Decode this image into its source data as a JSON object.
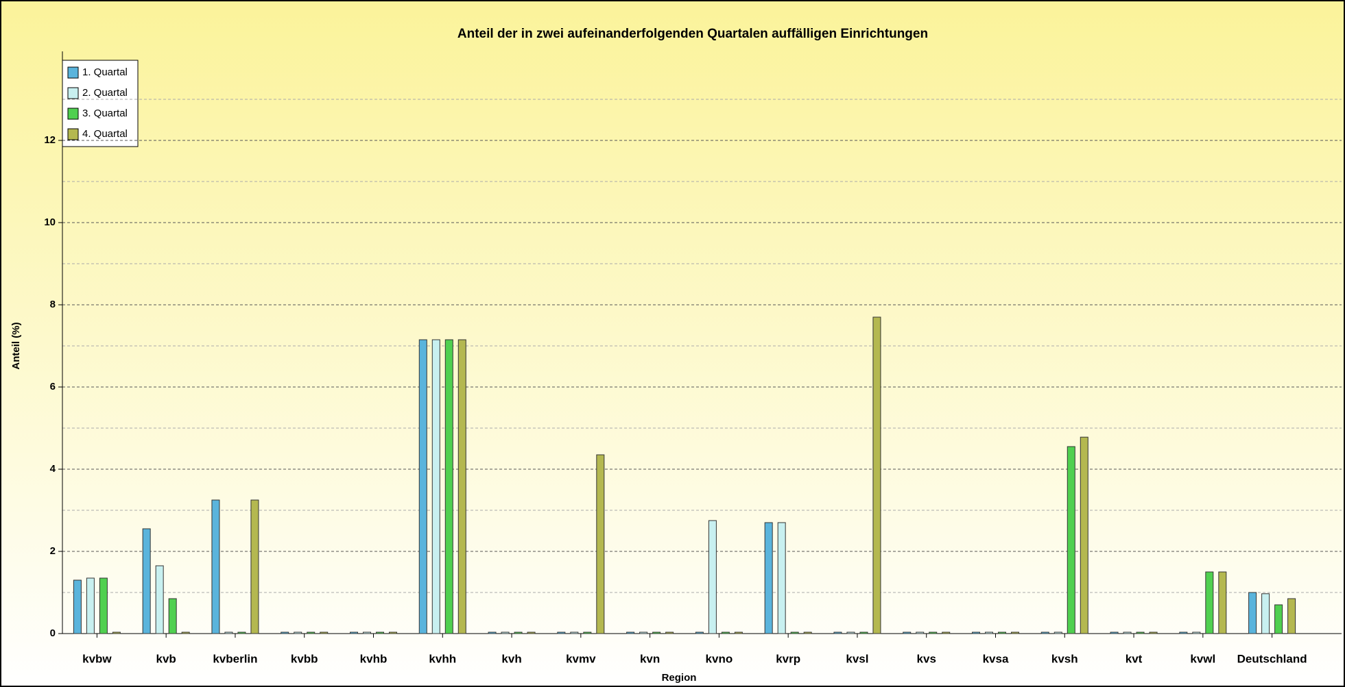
{
  "chart_data": {
    "type": "bar",
    "title": "Anteil der in zwei aufeinanderfolgenden Quartalen auffälligen Einrichtungen",
    "x_label": "Region",
    "y_label": "Anteil (%)",
    "categories": [
      "kvbw",
      "kvb",
      "kvberlin",
      "kvbb",
      "kvhb",
      "kvhh",
      "kvh",
      "kvmv",
      "kvn",
      "kvno",
      "kvrp",
      "kvsl",
      "kvs",
      "kvsa",
      "kvsh",
      "kvt",
      "kvwl",
      "Deutschland"
    ],
    "series": [
      {
        "name": "1. Quartal",
        "color": "#5ab4dc",
        "values": [
          1.3,
          2.55,
          3.25,
          0,
          0,
          7.15,
          0,
          0,
          0,
          0,
          2.7,
          0,
          0,
          0,
          0,
          0,
          0,
          1.0
        ]
      },
      {
        "name": "2. Quartal",
        "color": "#c8f0f0",
        "values": [
          1.35,
          1.65,
          0,
          0,
          0,
          7.15,
          0,
          0,
          0,
          2.75,
          2.7,
          0,
          0,
          0,
          0,
          0,
          0,
          0.97
        ]
      },
      {
        "name": "3. Quartal",
        "color": "#50d050",
        "values": [
          1.35,
          0.85,
          0,
          0,
          0,
          7.15,
          0,
          0,
          0,
          0,
          0,
          0,
          0,
          0,
          4.55,
          0,
          1.5,
          0.7
        ]
      },
      {
        "name": "4. Quartal",
        "color": "#b4b850",
        "values": [
          0,
          0,
          3.25,
          0,
          0,
          7.15,
          0,
          4.35,
          0,
          0,
          0,
          7.7,
          0,
          0,
          4.78,
          0,
          1.5,
          0.85
        ]
      }
    ],
    "ylim": [
      0,
      14
    ],
    "yticks": [
      0,
      2,
      4,
      6,
      8,
      10,
      12
    ],
    "minor_yticks": [
      1,
      3,
      5,
      7,
      9,
      11,
      13
    ],
    "grid": true,
    "legend": "top-left"
  }
}
